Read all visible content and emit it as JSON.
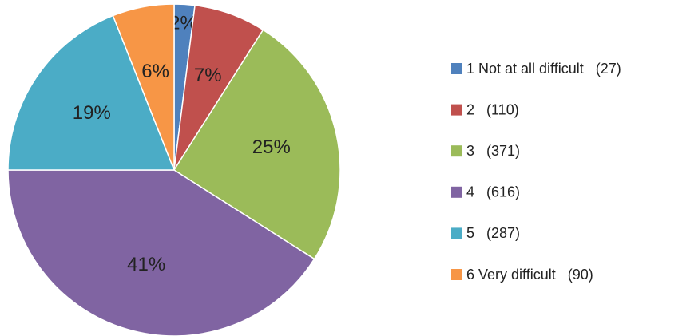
{
  "chart_data": {
    "type": "pie",
    "categories": [
      "1 Not at all difficult   (27)",
      "2   (110)",
      "3   (371)",
      "4   (616)",
      "5   (287)",
      "6 Very difficult   (90)"
    ],
    "values": [
      2,
      7,
      25,
      41,
      19,
      6
    ],
    "value_labels": [
      "2%",
      "7%",
      "25%",
      "41%",
      "19%",
      "6%"
    ],
    "colors": [
      "#4f81bd",
      "#c0504d",
      "#9bbb59",
      "#8064a2",
      "#4bacc6",
      "#f79646"
    ],
    "legend": "right"
  }
}
